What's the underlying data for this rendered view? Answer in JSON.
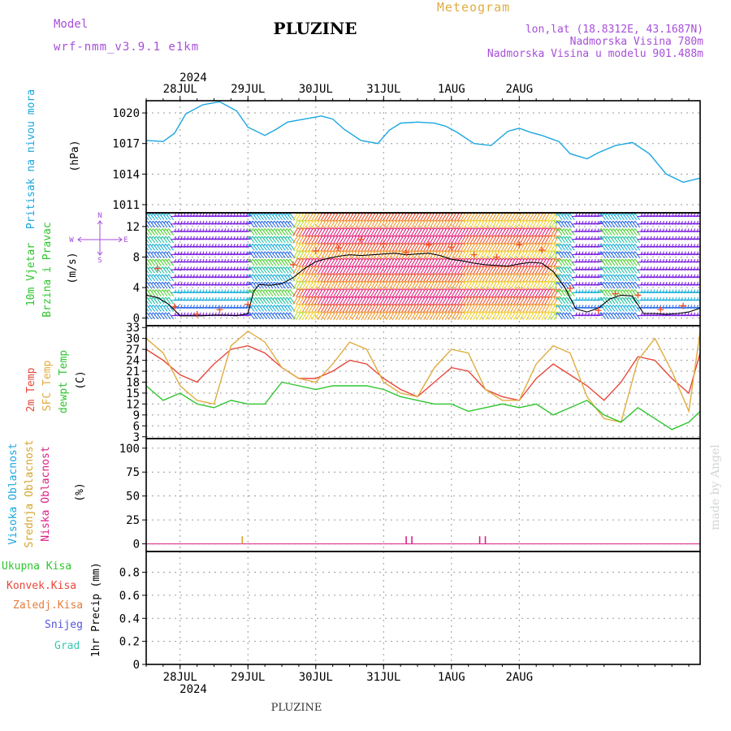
{
  "header": {
    "model_label": "Model",
    "model_name": "wrf-nmm_v3.9.1 e1km",
    "station": "PLUZINE",
    "meteogram": "Meteogram",
    "lonlat": "lon,lat (18.8312E, 43.1687N)",
    "altitude": "Nadmorska Visina 780m",
    "model_altitude": "Nadmorska Visina u modelu 901.488m",
    "footer_station": "PLUZINE",
    "watermark": "made by Angel",
    "year": "2024"
  },
  "colors": {
    "pressure": "#1aa6e0",
    "temp2m": "#e8473a",
    "sfc_temp": "#e0ac40",
    "dewpoint": "#2ec52e",
    "high_cloud": "#1aa6e0",
    "mid_cloud": "#d6a62c",
    "low_cloud": "#dd1f86",
    "purple_text": "#a64fd8",
    "gold_text": "#e0ac40"
  },
  "chart_data": [
    {
      "type": "line",
      "name": "pressure",
      "ylabel": "Pritisak na nivou mora",
      "unit": "(hPa)",
      "yticks": [
        1011,
        1014,
        1017,
        1020
      ],
      "ylim": [
        1010.2,
        1021.2
      ],
      "x_hours": [
        0,
        6,
        10,
        14,
        20,
        26,
        32,
        36,
        42,
        46,
        50,
        56,
        62,
        66,
        70,
        76,
        82,
        86,
        90,
        96,
        102,
        106,
        110,
        116,
        122,
        128,
        132,
        136,
        140,
        146,
        150,
        156,
        160,
        166,
        172,
        178,
        184,
        190,
        196
      ],
      "values": [
        1017.3,
        1017.2,
        1018.0,
        1019.9,
        1020.8,
        1021.1,
        1020.2,
        1018.6,
        1017.8,
        1018.4,
        1019.1,
        1019.4,
        1019.7,
        1019.4,
        1018.4,
        1017.3,
        1017.0,
        1018.3,
        1019.0,
        1019.1,
        1019.0,
        1018.7,
        1018.1,
        1017.0,
        1016.8,
        1018.2,
        1018.5,
        1018.1,
        1017.8,
        1017.2,
        1016.0,
        1015.5,
        1016.1,
        1016.8,
        1017.1,
        1016.0,
        1014.0,
        1013.2,
        1013.6
      ]
    },
    {
      "type": "wind",
      "name": "wind",
      "ylabel": "10m Vjetar",
      "ylabel2": "Brzina i Pravac",
      "unit": "(m/s)",
      "compass": [
        "N",
        "S",
        "W",
        "E"
      ],
      "yticks": [
        0,
        4,
        8,
        12
      ],
      "ylim": [
        -1,
        13.8
      ],
      "x_hours": [
        0,
        4,
        8,
        12,
        16,
        20,
        24,
        28,
        32,
        36,
        38,
        40,
        44,
        48,
        52,
        56,
        60,
        64,
        68,
        72,
        76,
        80,
        84,
        88,
        92,
        96,
        100,
        104,
        108,
        112,
        116,
        120,
        124,
        128,
        132,
        136,
        140,
        144,
        148,
        152,
        156,
        160,
        164,
        168,
        172,
        176,
        180,
        184,
        188,
        192,
        196
      ],
      "speed": [
        3.0,
        2.7,
        1.8,
        0.3,
        0.3,
        0.3,
        0.4,
        0.4,
        0.3,
        0.6,
        3.5,
        4.4,
        4.3,
        4.5,
        5.3,
        6.5,
        7.4,
        7.8,
        8.1,
        8.3,
        8.2,
        8.3,
        8.4,
        8.5,
        8.3,
        8.4,
        8.5,
        8.2,
        7.7,
        7.5,
        7.2,
        7.0,
        6.9,
        6.8,
        7.1,
        7.3,
        7.2,
        6.1,
        4.1,
        1.2,
        0.8,
        1.3,
        2.5,
        3.0,
        2.9,
        0.6,
        0.6,
        0.5,
        0.6,
        0.8,
        1.3
      ],
      "gust_x_hours": [
        4,
        10,
        18,
        26,
        36,
        52,
        60,
        68,
        76,
        84,
        92,
        100,
        108,
        116,
        124,
        132,
        140,
        150,
        160,
        166,
        174,
        182,
        190
      ],
      "gust": [
        6.5,
        1.5,
        0.5,
        1.1,
        1.8,
        7.0,
        8.8,
        9.2,
        10.3,
        9.7,
        8.6,
        9.6,
        9.3,
        8.3,
        8.0,
        9.6,
        8.9,
        3.9,
        1.0,
        3.2,
        3.0,
        1.1,
        1.6
      ]
    },
    {
      "type": "line",
      "name": "temperature",
      "ylabel": "2m Temp",
      "ylabel2": "SFC Temp",
      "ylabel3": "dewpt Temp",
      "unit": "(C)",
      "yticks": [
        3,
        6,
        9,
        12,
        15,
        18,
        21,
        24,
        27,
        30,
        33
      ],
      "ylim": [
        2.5,
        33.5
      ],
      "x_hours": [
        0,
        6,
        12,
        18,
        24,
        30,
        36,
        42,
        48,
        54,
        60,
        66,
        72,
        78,
        84,
        90,
        96,
        102,
        108,
        114,
        120,
        126,
        132,
        138,
        144,
        150,
        156,
        162,
        168,
        174,
        180,
        186,
        192,
        196
      ],
      "series": [
        {
          "name": "2m Temp",
          "values": [
            27,
            24,
            20,
            18,
            23,
            27,
            28,
            26,
            22,
            19,
            19,
            21,
            24,
            23,
            19,
            16,
            14,
            18,
            22,
            21,
            16,
            14,
            13,
            19,
            23,
            20,
            17,
            13,
            18,
            25,
            24,
            19,
            15,
            26
          ]
        },
        {
          "name": "SFC Temp",
          "values": [
            30,
            26,
            17,
            13,
            12,
            28,
            32,
            29,
            22,
            19,
            18,
            23,
            29,
            27,
            18,
            15,
            14,
            22,
            27,
            26,
            16,
            13,
            13,
            23,
            28,
            26,
            14,
            8,
            7,
            24,
            30,
            21,
            10,
            32
          ]
        },
        {
          "name": "dewpt Temp",
          "values": [
            17,
            13,
            15,
            12,
            11,
            13,
            12,
            12,
            18,
            17,
            16,
            17,
            17,
            17,
            16,
            14,
            13,
            12,
            12,
            10,
            11,
            12,
            11,
            12,
            9,
            11,
            13,
            9,
            7,
            11,
            8,
            5,
            7,
            10
          ]
        }
      ]
    },
    {
      "type": "bar",
      "name": "clouds",
      "ylabel": "Visoka Oblacnost",
      "ylabel2": "Srednja Oblacnost",
      "ylabel3": "Niska Oblacnost",
      "unit": "(%)",
      "yticks": [
        0,
        25,
        50,
        75,
        100
      ],
      "ylim": [
        -8,
        110
      ],
      "series": [
        {
          "name": "Srednja Oblacnost",
          "x_hours": [
            34
          ],
          "values": [
            8
          ]
        },
        {
          "name": "Niska Oblacnost",
          "x_hours": [
            92,
            94,
            118,
            120
          ],
          "values": [
            8,
            8,
            8,
            8
          ]
        }
      ]
    },
    {
      "type": "bar",
      "name": "precip",
      "legend": [
        "Ukupna Kisa",
        "Konvek.Kisa",
        "Zaledj.Kisa",
        "Snijeg",
        "Grad"
      ],
      "legend_colors": [
        "#2ec52e",
        "#e8473a",
        "#e87a3a",
        "#5555dd",
        "#3ac7b0"
      ],
      "ylabel": "1hr Precip",
      "unit": "(mm)",
      "yticks": [
        0,
        0.2,
        0.4,
        0.6,
        0.8
      ],
      "ylim": [
        0,
        0.98
      ],
      "values": []
    }
  ],
  "x_axis": {
    "labels": [
      "28JUL",
      "29JUL",
      "30JUL",
      "31JUL",
      "1AUG",
      "2AUG"
    ],
    "label_hours": [
      12,
      36,
      60,
      84,
      108,
      132
    ],
    "span_hours": [
      0,
      196
    ]
  }
}
